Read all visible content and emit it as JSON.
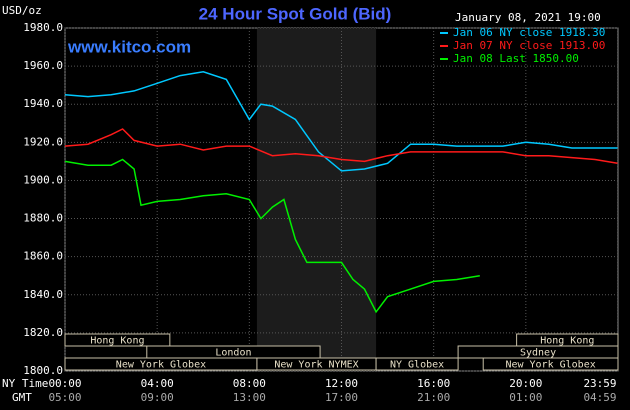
{
  "chart_data": {
    "type": "line",
    "title": "24 Hour Spot Gold (Bid)",
    "unit_label": "USD/oz",
    "date_label": "January 08, 2021 19:00",
    "watermark": "www.kitco.com",
    "ylim": [
      1800,
      1980
    ],
    "yticks": [
      {
        "value": 1980,
        "label": "1980.0"
      },
      {
        "value": 1960,
        "label": "1960.0"
      },
      {
        "value": 1940,
        "label": "1940.0"
      },
      {
        "value": 1920,
        "label": "1920.0"
      },
      {
        "value": 1900,
        "label": "1900.0"
      },
      {
        "value": 1880,
        "label": "1880.0"
      },
      {
        "value": 1860,
        "label": "1860.0"
      },
      {
        "value": 1840,
        "label": "1840.0"
      },
      {
        "value": 1820,
        "label": "1820.0"
      },
      {
        "value": 1800,
        "label": "1800.0"
      }
    ],
    "xlim": [
      0,
      24
    ],
    "xticks": [
      {
        "value": 0,
        "label": "00:00"
      },
      {
        "value": 4,
        "label": "04:00"
      },
      {
        "value": 8,
        "label": "08:00"
      },
      {
        "value": 12,
        "label": "12:00"
      },
      {
        "value": 16,
        "label": "16:00"
      },
      {
        "value": 20,
        "label": "20:00"
      },
      {
        "value": 23.98,
        "label": "23:59"
      }
    ],
    "x_axis_label": "NY Time",
    "x2_axis_label": "GMT",
    "x2_labels": [
      "05:00",
      "09:00",
      "13:00",
      "17:00",
      "21:00",
      "01:00",
      "04:59"
    ],
    "grid": true,
    "shaded_x": [
      8.33,
      13.5
    ],
    "sessions": [
      {
        "name": "Hong Kong",
        "row": 0,
        "start": 0,
        "end": 4.55
      },
      {
        "name": "Hong Kong",
        "row": 0,
        "start": 19.6,
        "end": 24
      },
      {
        "name": "London",
        "row": 1,
        "start": 3.55,
        "end": 11.07
      },
      {
        "name": "Sydney",
        "row": 1,
        "start": 17.06,
        "end": 24
      },
      {
        "name": "New York Globex",
        "row": 2,
        "start": 0,
        "end": 8.33
      },
      {
        "name": "New York NYMEX",
        "row": 2,
        "start": 8.33,
        "end": 13.5
      },
      {
        "name": "NY Globex",
        "row": 2,
        "start": 13.5,
        "end": 17.06
      },
      {
        "name": "New York Globex",
        "row": 2,
        "start": 18.15,
        "end": 24
      }
    ],
    "series": [
      {
        "name": "Jan 06 NY close 1918.30",
        "color": "#00c8ff",
        "x": [
          0,
          1,
          2,
          3,
          4,
          5,
          6,
          7,
          8,
          8.5,
          9,
          10,
          11,
          12,
          13,
          14,
          15,
          16,
          17,
          18,
          19,
          20,
          21,
          22,
          23,
          23.98
        ],
        "values": [
          1945,
          1944,
          1945,
          1947,
          1951,
          1955,
          1957,
          1953,
          1932,
          1940,
          1939,
          1932,
          1915,
          1905,
          1906,
          1909,
          1919,
          1919,
          1918,
          1918,
          1918,
          1920,
          1919,
          1917,
          1917,
          1917
        ]
      },
      {
        "name": "Jan 07 NY close 1913.00",
        "color": "#ff1a1a",
        "x": [
          0,
          1,
          2,
          2.5,
          3,
          4,
          5,
          6,
          7,
          8,
          9,
          10,
          11,
          12,
          13,
          14,
          15,
          16,
          17,
          18,
          19,
          20,
          21,
          22,
          23,
          23.98
        ],
        "values": [
          1918,
          1919,
          1924,
          1927,
          1921,
          1918,
          1919,
          1916,
          1918,
          1918,
          1913,
          1914,
          1913,
          1911,
          1910,
          1913,
          1915,
          1915,
          1915,
          1915,
          1915,
          1913,
          1913,
          1912,
          1911,
          1909
        ]
      },
      {
        "name": "Jan 08 Last 1850.00",
        "color": "#00f000",
        "x": [
          0,
          1,
          2,
          2.5,
          3,
          3.3,
          4,
          5,
          6,
          7,
          8,
          8.5,
          9,
          9.5,
          10,
          10.5,
          11,
          12,
          12.5,
          13,
          13.5,
          14,
          15,
          16,
          17,
          18
        ],
        "values": [
          1910,
          1908,
          1908,
          1911,
          1906,
          1887,
          1889,
          1890,
          1892,
          1893,
          1890,
          1880,
          1886,
          1890,
          1869,
          1857,
          1857,
          1857,
          1848,
          1843,
          1831,
          1839,
          1843,
          1847,
          1848,
          1850
        ]
      }
    ]
  }
}
